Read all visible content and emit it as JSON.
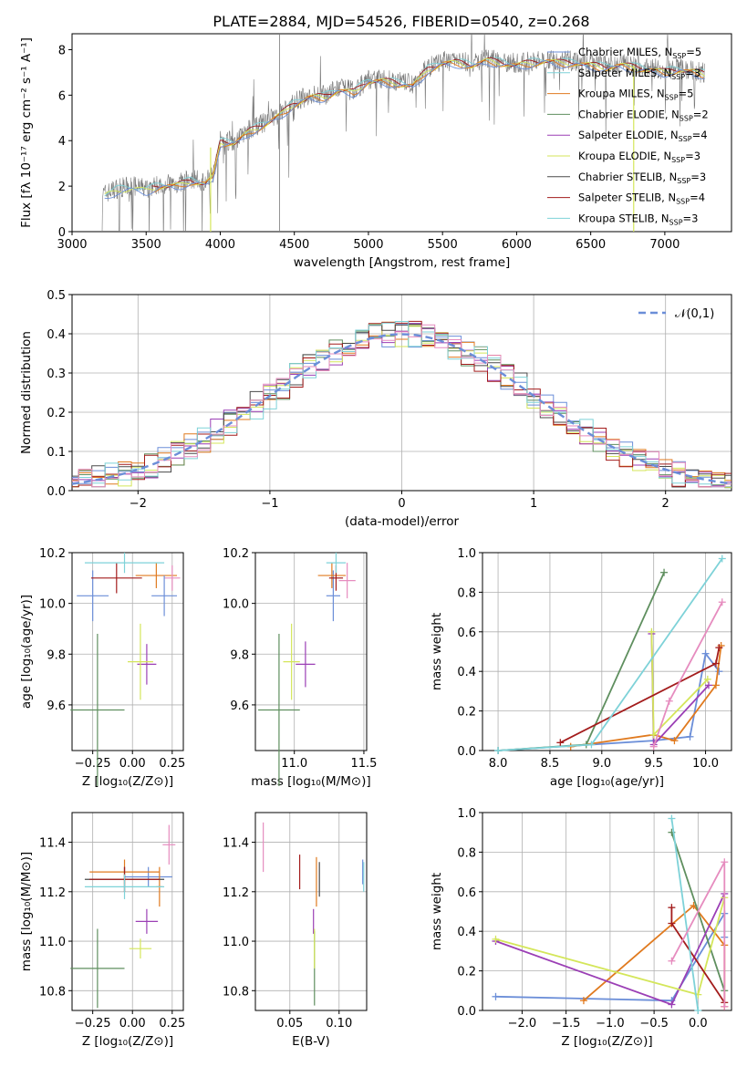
{
  "colors": {
    "grid": "#b0b0b0",
    "series": [
      "#6b8ed8",
      "#e07a1f",
      "#e07a1f",
      "#5f8f5f",
      "#9b3fb5",
      "#d4e65a",
      "#4a4a4a",
      "#a31c1c",
      "#7ed2d8"
    ],
    "norm": "#6b8ed8",
    "pink": "#e68cbf"
  },
  "chart_data": [
    {
      "id": "spectrum",
      "type": "line",
      "title": "PLATE=2884, MJD=54526, FIBERID=0540, z=0.268",
      "xlabel": "wavelength [Angstrom, rest frame]",
      "ylabel": "Flux [fλ 10⁻¹⁷ erg cm⁻² s⁻¹ A⁻¹]",
      "xlim": [
        3000,
        7450
      ],
      "ylim": [
        0,
        8.7
      ],
      "xticks": [
        "3000",
        "3500",
        "4000",
        "4500",
        "5000",
        "5500",
        "6000",
        "6500",
        "7000"
      ],
      "yticks": [
        "0",
        "2",
        "4",
        "6",
        "8"
      ],
      "grid": false,
      "legend_position": "top-right",
      "legend": [
        {
          "text": "Chabrier MILES, N",
          "sub": "SSP",
          "tail": "=5"
        },
        {
          "text": "Salpeter MILES, N",
          "sub": "SSP",
          "tail": "=3"
        },
        {
          "text": "Kroupa MILES, N",
          "sub": "SSP",
          "tail": "=5"
        },
        {
          "text": "Chabrier ELODIE, N",
          "sub": "SSP",
          "tail": "=2"
        },
        {
          "text": "Salpeter ELODIE, N",
          "sub": "SSP",
          "tail": "=4"
        },
        {
          "text": "Kroupa ELODIE, N",
          "sub": "SSP",
          "tail": "=3"
        },
        {
          "text": "Chabrier STELIB, N",
          "sub": "SSP",
          "tail": "=3"
        },
        {
          "text": "Salpeter STELIB, N",
          "sub": "SSP",
          "tail": "=4"
        },
        {
          "text": "Kroupa STELIB, N",
          "sub": "SSP",
          "tail": "=3"
        }
      ],
      "continuum": [
        [
          3200,
          1.6
        ],
        [
          3300,
          1.9
        ],
        [
          3400,
          2.0
        ],
        [
          3500,
          1.9
        ],
        [
          3600,
          2.1
        ],
        [
          3700,
          2.1
        ],
        [
          3800,
          2.3
        ],
        [
          3900,
          2.2
        ],
        [
          3950,
          2.5
        ],
        [
          4000,
          4.0
        ],
        [
          4100,
          4.0
        ],
        [
          4200,
          4.5
        ],
        [
          4300,
          4.8
        ],
        [
          4400,
          5.2
        ],
        [
          4500,
          5.7
        ],
        [
          4600,
          6.0
        ],
        [
          4700,
          6.0
        ],
        [
          4800,
          6.3
        ],
        [
          4900,
          6.2
        ],
        [
          5000,
          6.7
        ],
        [
          5100,
          6.7
        ],
        [
          5200,
          6.6
        ],
        [
          5300,
          6.5
        ],
        [
          5400,
          7.2
        ],
        [
          5500,
          7.5
        ],
        [
          5600,
          7.5
        ],
        [
          5700,
          7.4
        ],
        [
          5800,
          7.6
        ],
        [
          5900,
          7.5
        ],
        [
          6000,
          7.4
        ],
        [
          6100,
          7.5
        ],
        [
          6200,
          7.6
        ],
        [
          6300,
          7.5
        ],
        [
          6400,
          7.5
        ],
        [
          6500,
          7.4
        ],
        [
          6600,
          7.3
        ],
        [
          6700,
          7.4
        ],
        [
          6800,
          7.3
        ],
        [
          6900,
          7.2
        ],
        [
          7000,
          7.1
        ],
        [
          7100,
          7.2
        ],
        [
          7200,
          7.1
        ],
        [
          7270,
          7.0
        ]
      ]
    },
    {
      "id": "residuals",
      "type": "histogram",
      "xlabel": "(data-model)/error",
      "ylabel": "Normed distribution",
      "xlim": [
        -2.5,
        2.5
      ],
      "ylim": [
        0,
        0.5
      ],
      "xticks": [
        "−2",
        "−1",
        "0",
        "1",
        "2"
      ],
      "yticks": [
        "0.0",
        "0.1",
        "0.2",
        "0.3",
        "0.4",
        "0.5"
      ],
      "grid": true,
      "legend": "𝒩(0,1)",
      "legend_position": "top-right",
      "bin_width": 0.1
    },
    {
      "id": "age-vs-z",
      "type": "errorbar",
      "xlabel": "Z [log₁₀(Z/Z⊙)]",
      "ylabel": "age  [log₁₀(age/yr)]",
      "xlim": [
        -0.38,
        0.32
      ],
      "ylim": [
        9.42,
        10.2
      ],
      "xticks": [
        "−0.25",
        "0.00",
        "0.25"
      ],
      "yticks": [
        "9.6",
        "9.8",
        "10.0",
        "10.2"
      ],
      "points": [
        {
          "x": -0.25,
          "xerr": 0.1,
          "y": 10.03,
          "yerr": 0.1,
          "c": 0
        },
        {
          "x": 0.15,
          "xerr": 0.13,
          "y": 10.11,
          "yerr": 0.05,
          "c": 1
        },
        {
          "x": -0.22,
          "xerr": 0.17,
          "y": 9.58,
          "yerr": 0.3,
          "c": 3
        },
        {
          "x": 0.09,
          "xerr": 0.06,
          "y": 9.76,
          "yerr": 0.08,
          "c": 4
        },
        {
          "x": 0.05,
          "xerr": 0.08,
          "y": 9.77,
          "yerr": 0.15,
          "c": 5
        },
        {
          "x": -0.1,
          "xerr": 0.16,
          "y": 10.1,
          "yerr": 0.06,
          "c": 7
        },
        {
          "x": -0.05,
          "xerr": 0.25,
          "y": 10.16,
          "yerr": 0.04,
          "c": 8
        },
        {
          "x": 0.25,
          "xerr": 0.05,
          "y": 10.1,
          "yerr": 0.05,
          "c": "pink"
        },
        {
          "x": 0.2,
          "xerr": 0.08,
          "y": 10.03,
          "yerr": 0.08,
          "c": 0
        }
      ]
    },
    {
      "id": "age-vs-mass",
      "type": "errorbar",
      "xlabel": "mass [log₁₀(M/M⊙)]",
      "ylabel": "",
      "xlim": [
        10.72,
        11.52
      ],
      "ylim": [
        9.42,
        10.2
      ],
      "xticks": [
        "11.0",
        "11.5"
      ],
      "yticks": [
        "9.6",
        "9.8",
        "10.0",
        "10.2"
      ],
      "points": [
        {
          "x": 11.28,
          "xerr": 0.05,
          "y": 10.03,
          "yerr": 0.1,
          "c": 0
        },
        {
          "x": 11.27,
          "xerr": 0.1,
          "y": 10.11,
          "yerr": 0.05,
          "c": 1
        },
        {
          "x": 10.89,
          "xerr": 0.15,
          "y": 9.58,
          "yerr": 0.3,
          "c": 3
        },
        {
          "x": 11.08,
          "xerr": 0.07,
          "y": 9.76,
          "yerr": 0.09,
          "c": 4
        },
        {
          "x": 10.98,
          "xerr": 0.06,
          "y": 9.77,
          "yerr": 0.15,
          "c": 5
        },
        {
          "x": 11.3,
          "xerr": 0.05,
          "y": 10.1,
          "yerr": 0.05,
          "c": 7
        },
        {
          "x": 11.3,
          "xerr": 0.07,
          "y": 10.16,
          "yerr": 0.04,
          "c": 8
        },
        {
          "x": 11.38,
          "xerr": 0.06,
          "y": 10.09,
          "yerr": 0.07,
          "c": "pink"
        }
      ]
    },
    {
      "id": "weight-vs-age",
      "type": "line",
      "xlabel": "age  [log₁₀(age/yr)]",
      "ylabel": "mass weight",
      "xlim": [
        7.85,
        10.25
      ],
      "ylim": [
        0,
        1.0
      ],
      "xticks": [
        "8.0",
        "8.5",
        "9.0",
        "9.5",
        "10.0"
      ],
      "yticks": [
        "0.0",
        "0.2",
        "0.4",
        "0.6",
        "0.8",
        "1.0"
      ],
      "grid": true,
      "series": [
        {
          "c": 0,
          "x": [
            8.0,
            9.5,
            9.85,
            10.0,
            10.13
          ],
          "y": [
            0.0,
            0.05,
            0.07,
            0.49,
            0.4
          ]
        },
        {
          "c": 1,
          "x": [
            8.7,
            9.5,
            9.7,
            10.1,
            10.15
          ],
          "y": [
            0.02,
            0.08,
            0.05,
            0.33,
            0.53
          ]
        },
        {
          "c": 3,
          "x": [
            8.0,
            8.85,
            9.6
          ],
          "y": [
            0.0,
            0.03,
            0.9
          ]
        },
        {
          "c": 4,
          "x": [
            9.48,
            9.5,
            10.03
          ],
          "y": [
            0.59,
            0.03,
            0.33
          ]
        },
        {
          "c": 5,
          "x": [
            9.48,
            9.5,
            10.02
          ],
          "y": [
            0.6,
            0.08,
            0.36
          ]
        },
        {
          "c": 7,
          "x": [
            8.6,
            10.1,
            10.13
          ],
          "y": [
            0.04,
            0.44,
            0.52
          ]
        },
        {
          "c": 8,
          "x": [
            8.0,
            8.9,
            10.16
          ],
          "y": [
            0.0,
            0.03,
            0.97
          ]
        },
        {
          "c": "pink",
          "x": [
            9.5,
            9.65,
            10.16
          ],
          "y": [
            0.02,
            0.25,
            0.75
          ]
        }
      ]
    },
    {
      "id": "mass-vs-z",
      "type": "errorbar",
      "xlabel": "Z [log₁₀(Z/Z⊙)]",
      "ylabel": "mass [log₁₀(M/M⊙)]",
      "xlim": [
        -0.38,
        0.32
      ],
      "ylim": [
        10.72,
        11.52
      ],
      "xticks": [
        "−0.25",
        "0.00",
        "0.25"
      ],
      "yticks": [
        "10.8",
        "11.0",
        "11.2",
        "11.4"
      ],
      "points": [
        {
          "x": 0.1,
          "xerr": 0.15,
          "y": 11.26,
          "yerr": 0.04,
          "c": 0
        },
        {
          "x": -0.05,
          "xerr": 0.22,
          "y": 11.28,
          "yerr": 0.05,
          "c": 1
        },
        {
          "x": 0.17,
          "xerr": 0.02,
          "y": 11.22,
          "yerr": 0.08,
          "c": 1
        },
        {
          "x": -0.22,
          "xerr": 0.17,
          "y": 10.89,
          "yerr": 0.16,
          "c": 3
        },
        {
          "x": 0.09,
          "xerr": 0.07,
          "y": 11.08,
          "yerr": 0.05,
          "c": 4
        },
        {
          "x": 0.05,
          "xerr": 0.07,
          "y": 10.97,
          "yerr": 0.04,
          "c": 5
        },
        {
          "x": -0.05,
          "xerr": 0.25,
          "y": 11.25,
          "yerr": 0.05,
          "c": 6
        },
        {
          "x": -0.05,
          "xerr": 0.22,
          "y": 11.25,
          "yerr": 0.05,
          "c": 7
        },
        {
          "x": -0.05,
          "xerr": 0.25,
          "y": 11.22,
          "yerr": 0.05,
          "c": 8
        },
        {
          "x": 0.23,
          "xerr": 0.04,
          "y": 11.39,
          "yerr": 0.08,
          "c": "pink"
        }
      ]
    },
    {
      "id": "mass-vs-ebv",
      "type": "errorbar",
      "xlabel": "E(B-V)",
      "ylabel": "",
      "xlim": [
        0.015,
        0.128
      ],
      "ylim": [
        10.72,
        11.52
      ],
      "xticks": [
        "0.05",
        "0.10"
      ],
      "yticks": [
        "10.8",
        "11.0",
        "11.2",
        "11.4"
      ],
      "points": [
        {
          "x": 0.023,
          "y": 11.38,
          "yerr": 0.1,
          "c": "pink"
        },
        {
          "x": 0.06,
          "y": 11.28,
          "yerr": 0.07,
          "c": 7
        },
        {
          "x": 0.074,
          "y": 11.08,
          "yerr": 0.05,
          "c": 4
        },
        {
          "x": 0.075,
          "y": 10.89,
          "yerr": 0.15,
          "c": 3
        },
        {
          "x": 0.075,
          "y": 10.97,
          "yerr": 0.08,
          "c": 5
        },
        {
          "x": 0.077,
          "y": 11.24,
          "yerr": 0.1,
          "c": 1
        },
        {
          "x": 0.08,
          "y": 11.25,
          "yerr": 0.07,
          "c": 6
        },
        {
          "x": 0.124,
          "y": 11.28,
          "yerr": 0.05,
          "c": 0
        },
        {
          "x": 0.125,
          "y": 11.26,
          "yerr": 0.06,
          "c": 8
        }
      ]
    },
    {
      "id": "weight-vs-z",
      "type": "line",
      "xlabel": "Z [log₁₀(Z/Z⊙)]",
      "ylabel": "mass weight",
      "xlim": [
        -2.45,
        0.38
      ],
      "ylim": [
        0,
        1.0
      ],
      "xticks": [
        "−2.0",
        "−1.5",
        "−1.0",
        "−0.5",
        "0.0"
      ],
      "yticks": [
        "0.0",
        "0.2",
        "0.4",
        "0.6",
        "0.8",
        "1.0"
      ],
      "grid": true,
      "series": [
        {
          "c": 0,
          "x": [
            -2.3,
            -0.3,
            0.3,
            0.3
          ],
          "y": [
            0.07,
            0.05,
            0.49,
            0.37
          ]
        },
        {
          "c": 1,
          "x": [
            -1.3,
            -0.05,
            0.3,
            0.3
          ],
          "y": [
            0.05,
            0.53,
            0.33,
            0.02
          ]
        },
        {
          "c": 3,
          "x": [
            -0.3,
            0.3
          ],
          "y": [
            0.9,
            0.1
          ]
        },
        {
          "c": 4,
          "x": [
            -2.3,
            -0.3,
            0.3
          ],
          "y": [
            0.35,
            0.03,
            0.59
          ]
        },
        {
          "c": 5,
          "x": [
            -2.3,
            0.0,
            0.3
          ],
          "y": [
            0.36,
            0.08,
            0.57
          ]
        },
        {
          "c": 7,
          "x": [
            -0.3,
            -0.3,
            0.3
          ],
          "y": [
            0.52,
            0.44,
            0.04
          ]
        },
        {
          "c": 8,
          "x": [
            -0.3,
            0.0
          ],
          "y": [
            0.97,
            0.0
          ]
        },
        {
          "c": "pink",
          "x": [
            -0.3,
            0.3,
            0.3
          ],
          "y": [
            0.25,
            0.75,
            0.02
          ]
        }
      ]
    }
  ]
}
